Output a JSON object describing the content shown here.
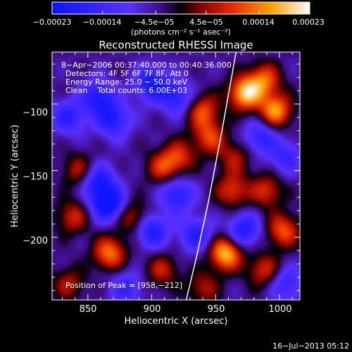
{
  "chart_data": {
    "type": "heatmap",
    "title": "Reconstructed RHESSI Image",
    "xlabel": "Heliocentric X (arcsec)",
    "ylabel": "Heliocentric Y (arcsec)",
    "xlim": [
      822,
      1016
    ],
    "ylim": [
      -247,
      -61
    ],
    "x_ticks": [
      850,
      900,
      950,
      1000
    ],
    "x_tick_labels": [
      "850",
      "900",
      "950",
      "1000"
    ],
    "y_ticks": [
      -100,
      -150,
      -200
    ],
    "y_tick_labels": [
      "−100",
      "−150",
      "−200"
    ],
    "colorbar": {
      "range": [
        -0.00023,
        0.00023
      ],
      "ticks": [
        -0.00023,
        -0.00014,
        -4.5e-05,
        4.5e-05,
        0.00014,
        0.00023
      ],
      "tick_labels": [
        "−0.00023",
        "−0.00014",
        "−4.5e−05",
        "4.5e−05",
        "0.00014",
        "0.00023"
      ],
      "unit_label": "(photons cm⁻² s⁻¹ asec⁻²)"
    },
    "annotations": [
      "8−Apr−2006 00:37:40.000 to 00:40:36.000",
      "Detectors: 4F 5F 6F 7F 8F, Att 0",
      "Energy Range: 25.0 − 50.0 keV",
      "Clean    Total counts: 6.00E+03"
    ],
    "peak_label": "Position of Peak = [958,−212]",
    "peak": {
      "x": 958,
      "y": -212
    },
    "limb_curve": [
      {
        "x": 966,
        "y": -61
      },
      {
        "x": 955,
        "y": -120
      },
      {
        "x": 944,
        "y": -175
      },
      {
        "x": 935,
        "y": -215
      },
      {
        "x": 927,
        "y": -247
      }
    ],
    "sources": [
      {
        "x": 973,
        "y": -92,
        "v": 0.00023
      },
      {
        "x": 997,
        "y": -105,
        "v": 0.0002
      },
      {
        "x": 988,
        "y": -82,
        "v": 0.00016
      },
      {
        "x": 940,
        "y": -105,
        "v": 0.00015
      },
      {
        "x": 945,
        "y": -125,
        "v": 0.00014
      },
      {
        "x": 921,
        "y": -140,
        "v": 0.00013
      },
      {
        "x": 908,
        "y": -148,
        "v": 0.00012
      },
      {
        "x": 963,
        "y": -165,
        "v": 0.00014
      },
      {
        "x": 990,
        "y": -165,
        "v": 0.00013
      },
      {
        "x": 958,
        "y": -212,
        "v": 0.00023
      },
      {
        "x": 1003,
        "y": -195,
        "v": 0.00016
      },
      {
        "x": 988,
        "y": -225,
        "v": 0.00013
      },
      {
        "x": 867,
        "y": -212,
        "v": 0.00018
      },
      {
        "x": 885,
        "y": -185,
        "v": 0.00012
      },
      {
        "x": 843,
        "y": -150,
        "v": 0.00011
      },
      {
        "x": 838,
        "y": -185,
        "v": 0.00012
      },
      {
        "x": 908,
        "y": -225,
        "v": 0.00011
      },
      {
        "x": 940,
        "y": -238,
        "v": 0.0001
      },
      {
        "x": 835,
        "y": -235,
        "v": 0.0001
      },
      {
        "x": 965,
        "y": -140,
        "v": 0.0001
      },
      {
        "x": 858,
        "y": -95,
        "v": -0.00016
      },
      {
        "x": 900,
        "y": -85,
        "v": -0.00017
      },
      {
        "x": 870,
        "y": -112,
        "v": -0.00015
      },
      {
        "x": 920,
        "y": -95,
        "v": -0.00014
      },
      {
        "x": 920,
        "y": -168,
        "v": -0.00015
      },
      {
        "x": 866,
        "y": -175,
        "v": -0.00022
      },
      {
        "x": 858,
        "y": -158,
        "v": -0.00016
      },
      {
        "x": 900,
        "y": -195,
        "v": -0.00016
      },
      {
        "x": 935,
        "y": -198,
        "v": -0.00014
      },
      {
        "x": 972,
        "y": -195,
        "v": -0.00016
      },
      {
        "x": 985,
        "y": -125,
        "v": -0.00013
      },
      {
        "x": 1005,
        "y": -140,
        "v": -0.00011
      },
      {
        "x": 835,
        "y": -110,
        "v": -0.00013
      },
      {
        "x": 1005,
        "y": -235,
        "v": -0.00012
      },
      {
        "x": 880,
        "y": -238,
        "v": -0.00011
      }
    ]
  },
  "footer": {
    "timestamp": "16−Jul−2013 05:12"
  }
}
